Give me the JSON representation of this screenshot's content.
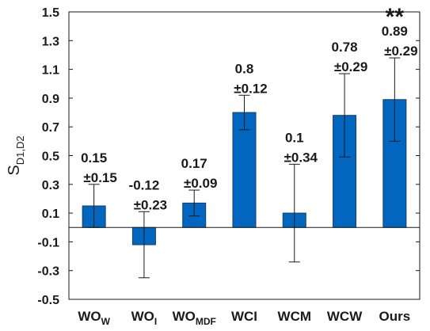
{
  "chart_data": {
    "type": "bar",
    "ylabel": {
      "main": "S",
      "sub": "D1,D2"
    },
    "ylim": [
      -0.5,
      1.5
    ],
    "yticks": [
      "1.5",
      "1.3",
      "1.1",
      "0.9",
      "0.7",
      "0.5",
      "0.3",
      "0.1",
      "-0.1",
      "-0.3",
      "-0.5"
    ],
    "ytick_values": [
      1.5,
      1.3,
      1.1,
      0.9,
      0.7,
      0.5,
      0.3,
      0.1,
      -0.1,
      -0.3,
      -0.5
    ],
    "categories": [
      {
        "main": "WO",
        "sub": "W"
      },
      {
        "main": "WO",
        "sub": "I"
      },
      {
        "main": "WO",
        "sub": "MDF"
      },
      {
        "main": "WCI",
        "sub": ""
      },
      {
        "main": "WCM",
        "sub": ""
      },
      {
        "main": "WCW",
        "sub": ""
      },
      {
        "main": "Ours",
        "sub": ""
      }
    ],
    "values": [
      0.15,
      -0.12,
      0.17,
      0.8,
      0.1,
      0.78,
      0.89
    ],
    "errors": [
      0.15,
      0.23,
      0.09,
      0.12,
      0.34,
      0.29,
      0.29
    ],
    "value_labels": [
      "0.15",
      "-0.12",
      "0.17",
      "0.8",
      "0.1",
      "0.78",
      "0.89"
    ],
    "error_labels": [
      "±0.15",
      "±0.23",
      "±0.09",
      "±0.12",
      "±0.34",
      "±0.29",
      "±0.29"
    ],
    "significance": {
      "index": 6,
      "label": "**"
    },
    "bar_color": "#0066bf",
    "grid": false,
    "box": true
  }
}
